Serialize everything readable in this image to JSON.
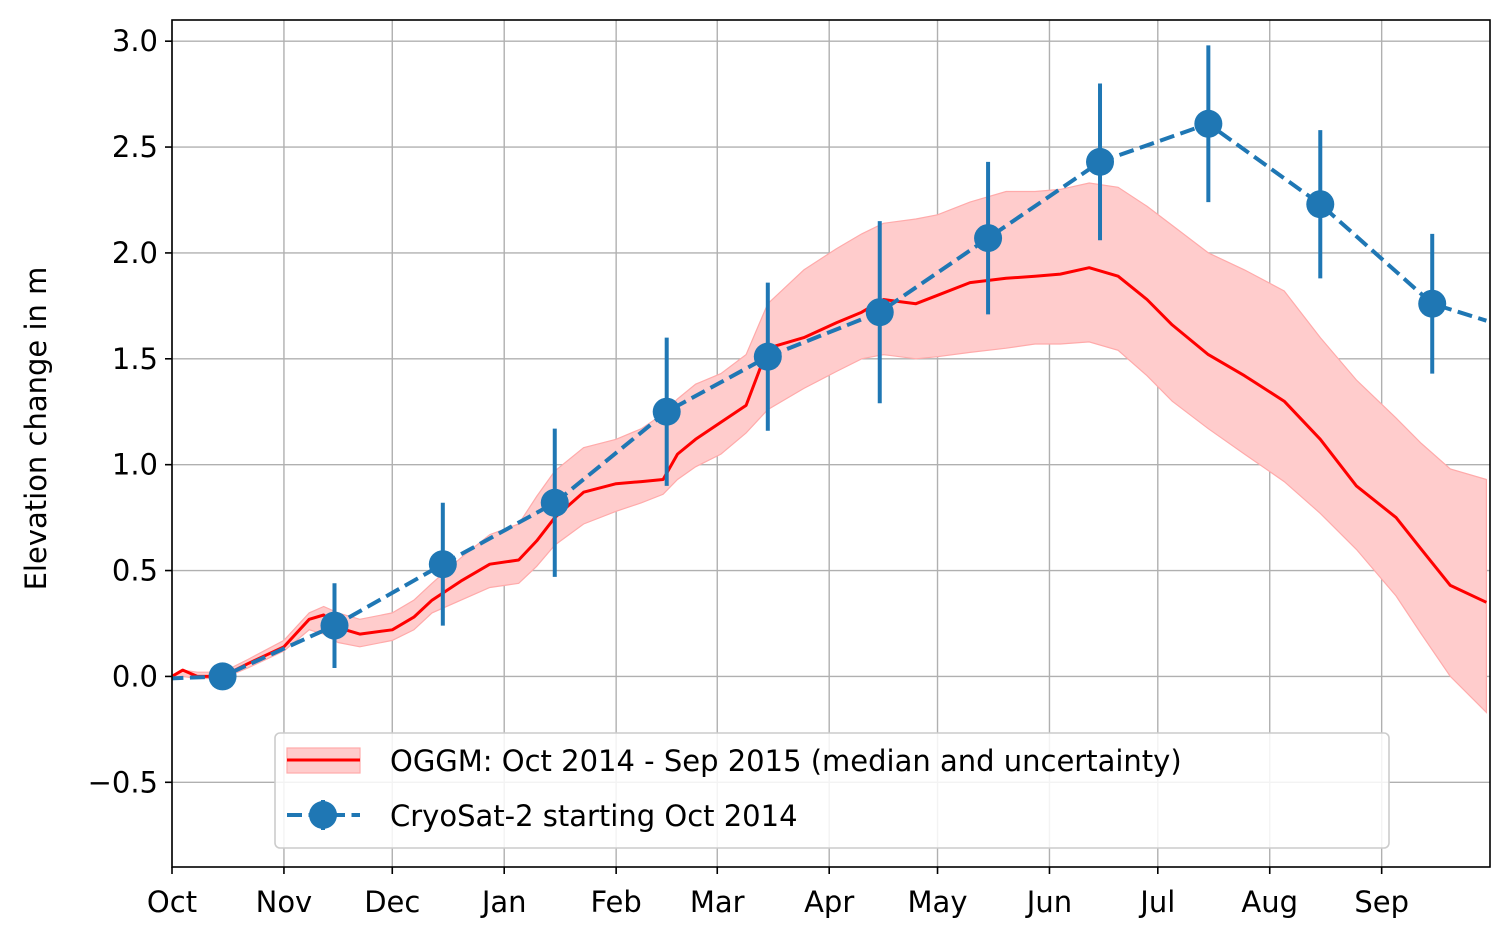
{
  "chart_data": {
    "type": "line",
    "title": "",
    "xlabel": "",
    "ylabel": "Elevation change in m",
    "xlim": [
      "2014-10-01",
      "2015-09-30"
    ],
    "ylim": [
      -0.9,
      3.1
    ],
    "grid": true,
    "legend_position": "lower center",
    "x_ticks": [
      "Oct",
      "Nov",
      "Dec",
      "Jan",
      "Feb",
      "Mar",
      "Apr",
      "May",
      "Jun",
      "Jul",
      "Aug",
      "Sep"
    ],
    "y_ticks": [
      "−0.5",
      "0.0",
      "0.5",
      "1.0",
      "1.5",
      "2.0",
      "2.5",
      "3.0"
    ],
    "series": [
      {
        "name": "OGGM: Oct 2014 - Sep 2015 (median and uncertainty)",
        "kind": "median line with uncertainty band",
        "color": "#ff0000",
        "band_color": "#ffcccc",
        "x": [
          "2014-10-01",
          "2014-10-04",
          "2014-10-08",
          "2014-10-15",
          "2014-10-22",
          "2014-11-01",
          "2014-11-08",
          "2014-11-12",
          "2014-11-16",
          "2014-11-22",
          "2014-12-01",
          "2014-12-07",
          "2014-12-12",
          "2014-12-20",
          "2014-12-28",
          "2015-01-05",
          "2015-01-10",
          "2015-01-15",
          "2015-01-23",
          "2015-02-01",
          "2015-02-08",
          "2015-02-14",
          "2015-02-18",
          "2015-02-23",
          "2015-03-02",
          "2015-03-09",
          "2015-03-15",
          "2015-03-25",
          "2015-04-03",
          "2015-04-10",
          "2015-04-16",
          "2015-04-25",
          "2015-05-01",
          "2015-05-10",
          "2015-05-20",
          "2015-05-28",
          "2015-06-04",
          "2015-06-12",
          "2015-06-20",
          "2015-06-28",
          "2015-07-05",
          "2015-07-15",
          "2015-07-25",
          "2015-08-05",
          "2015-08-15",
          "2015-08-25",
          "2015-09-05",
          "2015-09-12",
          "2015-09-20",
          "2015-09-30"
        ],
        "median": [
          0.0,
          0.03,
          0.0,
          0.0,
          0.06,
          0.14,
          0.27,
          0.29,
          0.23,
          0.2,
          0.22,
          0.28,
          0.36,
          0.45,
          0.53,
          0.55,
          0.64,
          0.75,
          0.87,
          0.91,
          0.92,
          0.93,
          1.05,
          1.12,
          1.2,
          1.28,
          1.55,
          1.6,
          1.67,
          1.72,
          1.78,
          1.76,
          1.8,
          1.86,
          1.88,
          1.89,
          1.9,
          1.93,
          1.89,
          1.78,
          1.66,
          1.52,
          1.42,
          1.3,
          1.12,
          0.9,
          0.75,
          0.6,
          0.43,
          0.35
        ],
        "lower": [
          0.0,
          0.0,
          -0.01,
          -0.01,
          0.04,
          0.12,
          0.22,
          0.2,
          0.16,
          0.14,
          0.17,
          0.22,
          0.3,
          0.36,
          0.42,
          0.44,
          0.52,
          0.62,
          0.72,
          0.78,
          0.82,
          0.86,
          0.93,
          0.99,
          1.05,
          1.15,
          1.26,
          1.36,
          1.44,
          1.5,
          1.52,
          1.5,
          1.51,
          1.53,
          1.55,
          1.57,
          1.57,
          1.58,
          1.54,
          1.42,
          1.3,
          1.17,
          1.05,
          0.92,
          0.77,
          0.6,
          0.38,
          0.2,
          0.0,
          -0.17
        ],
        "upper": [
          0.0,
          0.03,
          0.02,
          0.02,
          0.08,
          0.17,
          0.3,
          0.33,
          0.3,
          0.27,
          0.3,
          0.36,
          0.44,
          0.56,
          0.67,
          0.72,
          0.85,
          0.97,
          1.08,
          1.12,
          1.17,
          1.24,
          1.31,
          1.38,
          1.43,
          1.52,
          1.76,
          1.92,
          2.02,
          2.09,
          2.14,
          2.16,
          2.18,
          2.24,
          2.29,
          2.29,
          2.3,
          2.33,
          2.31,
          2.22,
          2.13,
          2.0,
          1.92,
          1.82,
          1.6,
          1.4,
          1.22,
          1.1,
          0.98,
          0.93
        ]
      },
      {
        "name": "CryoSat-2 starting Oct 2014",
        "kind": "dashed line with markers and error bars",
        "color": "#1f77b4",
        "x": [
          "2014-09-30",
          "2014-10-15",
          "2014-11-15",
          "2014-12-15",
          "2015-01-15",
          "2015-02-15",
          "2015-03-15",
          "2015-04-15",
          "2015-05-15",
          "2015-06-15",
          "2015-07-15",
          "2015-08-15",
          "2015-09-15",
          "2015-09-30"
        ],
        "values": [
          -0.01,
          0.0,
          0.24,
          0.53,
          0.82,
          1.25,
          1.51,
          1.72,
          2.07,
          2.43,
          2.61,
          2.23,
          1.76,
          1.68
        ],
        "errors": [
          null,
          0.0,
          0.2,
          0.29,
          0.35,
          0.35,
          0.35,
          0.43,
          0.36,
          0.37,
          0.37,
          0.35,
          0.33,
          null
        ]
      }
    ]
  }
}
